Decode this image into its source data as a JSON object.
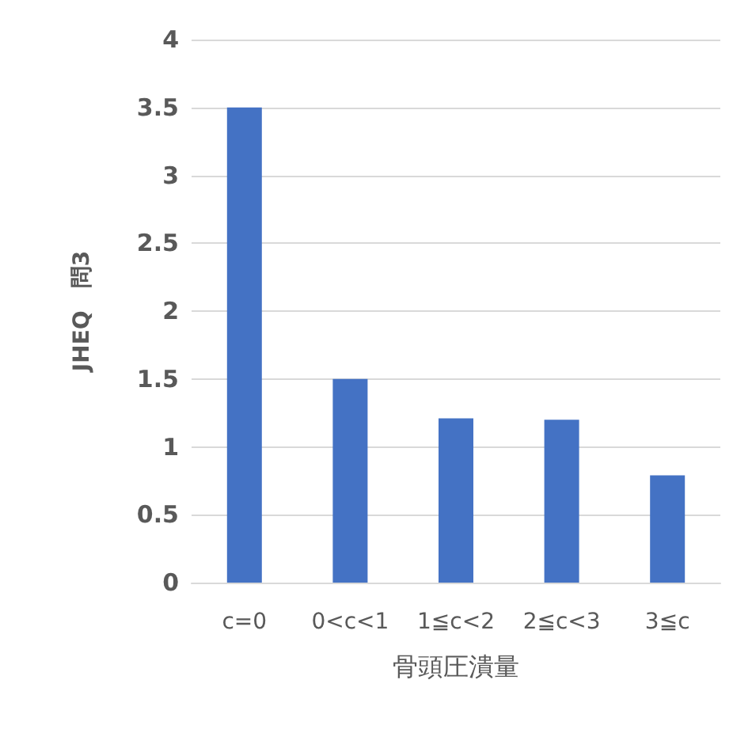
{
  "chart_data": {
    "type": "bar",
    "xlabel": "骨頭圧潰量",
    "ylabel": "JHEQ　問3",
    "categories": [
      "c=0",
      "0<c<1",
      "1≦c<2",
      "2≦c<3",
      "3≦c"
    ],
    "values": [
      3.5,
      1.5,
      1.21,
      1.2,
      0.79
    ],
    "color": "#4472c4",
    "ylim": [
      0,
      4
    ],
    "yticks": [
      0,
      0.5,
      1,
      1.5,
      2,
      2.5,
      3,
      3.5,
      4
    ],
    "grid": "y"
  }
}
